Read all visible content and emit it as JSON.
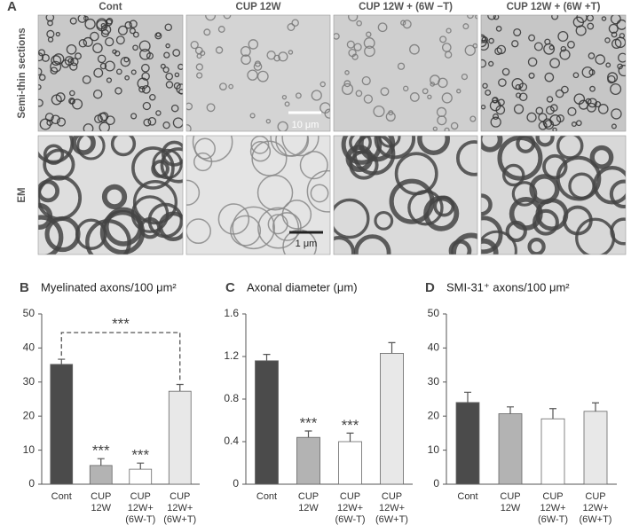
{
  "panel_a": {
    "label": "A",
    "columns": [
      "Cont",
      "CUP 12W",
      "CUP 12W + (6W −T)",
      "CUP 12W + (6W +T)"
    ],
    "rows": [
      "Semi-thin sections",
      "EM"
    ],
    "scale_bars": [
      "10 μm",
      "1 μm"
    ]
  },
  "chart_data": [
    {
      "type": "bar",
      "panel": "B",
      "title": "Myelinated axons/100 μm²",
      "categories": [
        [
          "Cont"
        ],
        [
          "CUP",
          "12W"
        ],
        [
          "CUP",
          "12W+",
          "(6W-T)"
        ],
        [
          "CUP",
          "12W+",
          "(6W+T)"
        ]
      ],
      "values": [
        35.2,
        5.5,
        4.4,
        27.3
      ],
      "errors": [
        1.5,
        2.0,
        1.8,
        2.0
      ],
      "colors": [
        "#4b4b4b",
        "#b3b3b3",
        "#ffffff",
        "#e8e8e8"
      ],
      "significance": [
        null,
        "***",
        "***",
        null
      ],
      "bracket_label": "***",
      "ylim": [
        0,
        50
      ],
      "yticks": [
        0,
        10,
        20,
        30,
        40,
        50
      ]
    },
    {
      "type": "bar",
      "panel": "C",
      "title": "Axonal diameter (μm)",
      "categories": [
        [
          "Cont"
        ],
        [
          "CUP",
          "12W"
        ],
        [
          "CUP",
          "12W+",
          "(6W-T)"
        ],
        [
          "CUP",
          "12W+",
          "(6W+T)"
        ]
      ],
      "values": [
        1.16,
        0.44,
        0.4,
        1.23
      ],
      "errors": [
        0.06,
        0.06,
        0.08,
        0.1
      ],
      "colors": [
        "#4b4b4b",
        "#b3b3b3",
        "#ffffff",
        "#e8e8e8"
      ],
      "significance": [
        null,
        "***",
        "***",
        null
      ],
      "ylim": [
        0,
        1.6
      ],
      "yticks": [
        0,
        0.4,
        0.8,
        1.2,
        1.6
      ]
    },
    {
      "type": "bar",
      "panel": "D",
      "title": "SMI-31⁺ axons/100 μm²",
      "categories": [
        [
          "Cont"
        ],
        [
          "CUP",
          "12W"
        ],
        [
          "CUP",
          "12W+",
          "(6W-T)"
        ],
        [
          "CUP",
          "12W+",
          "(6W+T)"
        ]
      ],
      "values": [
        24.0,
        20.7,
        19.2,
        21.4
      ],
      "errors": [
        3.0,
        2.0,
        3.0,
        2.5
      ],
      "colors": [
        "#4b4b4b",
        "#b3b3b3",
        "#ffffff",
        "#e8e8e8"
      ],
      "ylim": [
        0,
        50
      ],
      "yticks": [
        0,
        10,
        20,
        30,
        40,
        50
      ]
    }
  ]
}
